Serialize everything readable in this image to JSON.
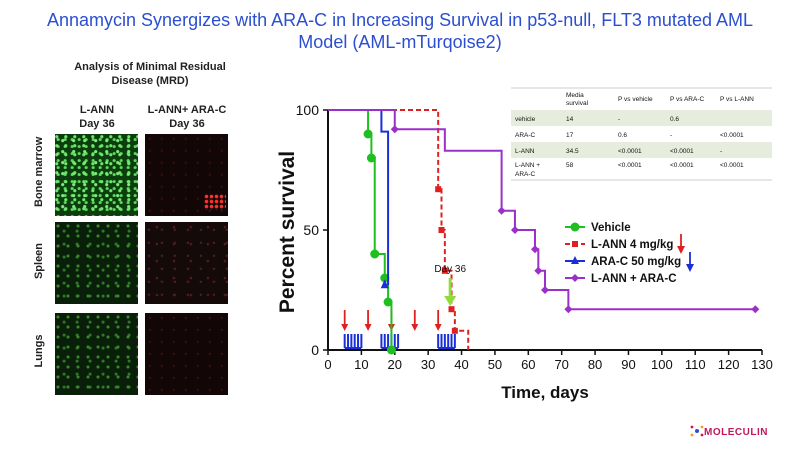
{
  "title_line1": "Annamycin Synergizes with ARA-C in Increasing Survival in p53-null, FLT3 mutated AML",
  "title_line2": "Model (AML-mTurqoise2)",
  "mrd": {
    "title_line1": "Analysis of Minimal Residual",
    "title_line2": "Disease (MRD)",
    "col1_line1": "L-ANN",
    "col1_line2": "Day 36",
    "col2_line1": "L-ANN+ ARA-C",
    "col2_line2": "Day 36",
    "rows": [
      "Bone marrow",
      "Spleen",
      "Lungs"
    ]
  },
  "logo": "MOLECULIN",
  "chart_data": {
    "type": "line",
    "subtype": "kaplan-meier",
    "xlabel": "Time, days",
    "ylabel": "Percent survival",
    "xlim": [
      0,
      130
    ],
    "ylim": [
      0,
      100
    ],
    "xticks": [
      0,
      10,
      20,
      30,
      40,
      50,
      60,
      70,
      80,
      90,
      100,
      110,
      120,
      130
    ],
    "yticks": [
      0,
      50,
      100
    ],
    "series": [
      {
        "name": "Vehicle",
        "color": "#1fbf1f",
        "style": "solid",
        "marker": "circle",
        "x": [
          0,
          12,
          12,
          13,
          13,
          14,
          14,
          17,
          17,
          18,
          18,
          19,
          19
        ],
        "y": [
          100,
          100,
          90,
          90,
          80,
          80,
          40,
          40,
          30,
          30,
          20,
          20,
          0
        ],
        "markers": [
          [
            12,
            90
          ],
          [
            13,
            80
          ],
          [
            14,
            40
          ],
          [
            17,
            30
          ],
          [
            18,
            20
          ],
          [
            19,
            0
          ]
        ]
      },
      {
        "name": "L-ANN 4 mg/kg",
        "color": "#e02020",
        "style": "dashed",
        "marker": "square",
        "x": [
          0,
          33,
          33,
          34,
          34,
          35,
          35,
          37,
          37,
          38,
          38,
          42,
          42
        ],
        "y": [
          100,
          100,
          67,
          67,
          50,
          50,
          33,
          33,
          17,
          17,
          8,
          8,
          0
        ],
        "markers": [
          [
            33,
            67
          ],
          [
            34,
            50
          ],
          [
            35,
            33
          ],
          [
            37,
            17
          ],
          [
            38,
            8
          ]
        ]
      },
      {
        "name": "ARA-C 50 mg/kg",
        "color": "#1a2fd6",
        "style": "solid",
        "marker": "triangle",
        "x": [
          0,
          16,
          16,
          18,
          18
        ],
        "y": [
          100,
          100,
          91,
          91,
          27
        ],
        "markers": [
          [
            17,
            27
          ]
        ]
      },
      {
        "name": "L-ANN + ARA-C",
        "color": "#9b30c8",
        "style": "solid",
        "marker": "diamond",
        "x": [
          0,
          20,
          20,
          35,
          35,
          52,
          52,
          56,
          56,
          62,
          62,
          63,
          63,
          65,
          65,
          72,
          72,
          128
        ],
        "y": [
          100,
          100,
          92,
          92,
          83,
          83,
          58,
          58,
          50,
          50,
          42,
          42,
          33,
          33,
          25,
          25,
          17,
          17
        ],
        "markers": [
          [
            20,
            92
          ],
          [
            52,
            58
          ],
          [
            56,
            50
          ],
          [
            62,
            42
          ],
          [
            63,
            33
          ],
          [
            65,
            25
          ],
          [
            72,
            17
          ],
          [
            128,
            17
          ]
        ]
      }
    ],
    "dosing": {
      "red_arrow_days": [
        5,
        12,
        19,
        26,
        33
      ],
      "blue_tick_ranges": [
        [
          5,
          10
        ],
        [
          16,
          21
        ],
        [
          33,
          38
        ]
      ]
    },
    "annotation": {
      "text": "Day 36",
      "x": 36
    },
    "table": {
      "headers": [
        "",
        "Media survival",
        "P vs vehicle",
        "P vs ARA-C",
        "P vs L-ANN"
      ],
      "rows": [
        [
          "vehicle",
          "14",
          "-",
          "0.6",
          ""
        ],
        [
          "ARA-C",
          "17",
          "0.6",
          "-",
          "<0.0001"
        ],
        [
          "L-ANN",
          "34.5",
          "<0.0001",
          "<0.0001",
          "-"
        ],
        [
          "L-ANN + ARA-C",
          "58",
          "<0.0001",
          "<0.0001",
          "<0.0001"
        ]
      ]
    }
  }
}
